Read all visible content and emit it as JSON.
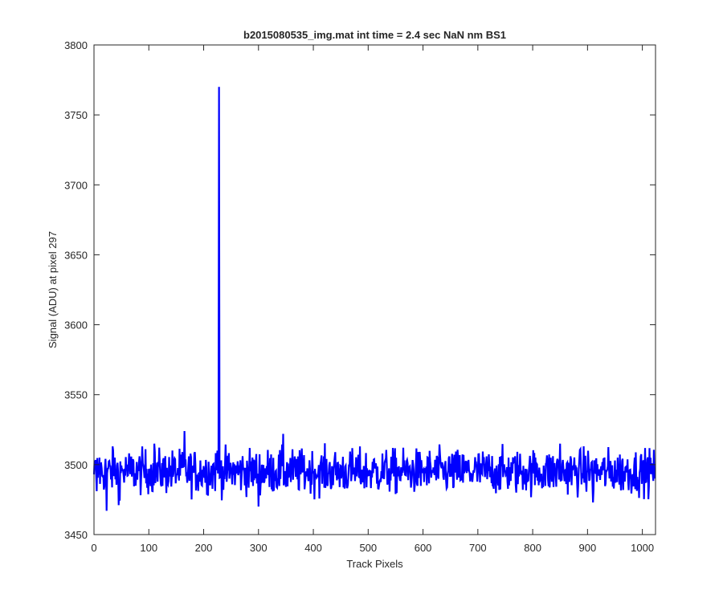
{
  "chart_data": {
    "type": "line",
    "title": "b2015080535_img.mat int time = 2.4 sec  NaN nm BS1",
    "xlabel": "Track Pixels",
    "ylabel": "Signal (ADU) at pixel 297",
    "xlim": [
      0,
      1024
    ],
    "ylim": [
      3450,
      3800
    ],
    "xticks": [
      0,
      100,
      200,
      300,
      400,
      500,
      600,
      700,
      800,
      900,
      1000
    ],
    "yticks": [
      3450,
      3500,
      3550,
      3600,
      3650,
      3700,
      3750,
      3800
    ],
    "grid": false,
    "legend": "none",
    "series": [
      {
        "color": "#0000ff",
        "sample_points": [
          {
            "x": 0,
            "y": 3493
          },
          {
            "x": 5,
            "y": 3481
          },
          {
            "x": 10,
            "y": 3505
          },
          {
            "x": 20,
            "y": 3498
          },
          {
            "x": 23,
            "y": 3467
          },
          {
            "x": 35,
            "y": 3510
          },
          {
            "x": 45,
            "y": 3471
          },
          {
            "x": 60,
            "y": 3500
          },
          {
            "x": 100,
            "y": 3497
          },
          {
            "x": 110,
            "y": 3515
          },
          {
            "x": 165,
            "y": 3524
          },
          {
            "x": 200,
            "y": 3499
          },
          {
            "x": 225,
            "y": 3510
          },
          {
            "x": 228,
            "y": 3770
          },
          {
            "x": 231,
            "y": 3495
          },
          {
            "x": 300,
            "y": 3470
          },
          {
            "x": 345,
            "y": 3522
          },
          {
            "x": 400,
            "y": 3495
          },
          {
            "x": 500,
            "y": 3493
          },
          {
            "x": 600,
            "y": 3496
          },
          {
            "x": 700,
            "y": 3494
          },
          {
            "x": 800,
            "y": 3495
          },
          {
            "x": 850,
            "y": 3515
          },
          {
            "x": 910,
            "y": 3473
          },
          {
            "x": 1000,
            "y": 3497
          },
          {
            "x": 1023,
            "y": 3493
          }
        ],
        "spike": {
          "x": 228,
          "y": 3770
        },
        "baseline": 3495,
        "noise_amplitude": 8,
        "n_points": 1024
      }
    ]
  }
}
